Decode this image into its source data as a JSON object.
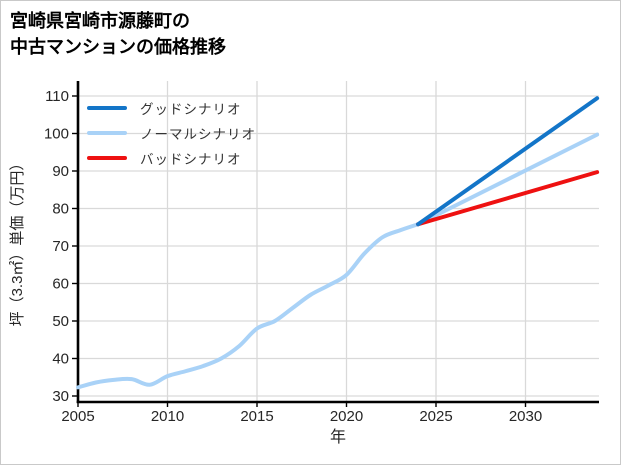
{
  "header": {
    "title_lines": [
      "宮崎県宮崎市源藤町の",
      "中古マンションの価格推移"
    ]
  },
  "chart_data": {
    "type": "line",
    "title": "宮崎県宮崎市源藤町の中古マンションの価格推移",
    "xlabel": "年",
    "ylabel": "坪（3.3㎡）単価（万円）",
    "x_ticks": [
      2005,
      2010,
      2015,
      2020,
      2025,
      2030
    ],
    "y_ticks": [
      30,
      40,
      50,
      60,
      70,
      80,
      90,
      100,
      110
    ],
    "xlim": [
      2005,
      2034.3
    ],
    "ylim": [
      28.5,
      114
    ],
    "grid": true,
    "legend_position": "top-left-inside",
    "colors": {
      "good": "#1375c8",
      "normal": "#a9d2f7",
      "bad": "#ee1111",
      "grid": "#d9d9d9",
      "axis": "#000000",
      "text": "#262626"
    },
    "history": {
      "label": "ノーマルシナリオ",
      "color_key": "normal",
      "x": [
        2005,
        2006,
        2007,
        2008,
        2009,
        2010,
        2011,
        2012,
        2013,
        2014,
        2015,
        2016,
        2017,
        2018,
        2019,
        2020,
        2021,
        2022,
        2023,
        2024
      ],
      "values": [
        32.3,
        33.6,
        34.3,
        34.5,
        33.0,
        35.3,
        36.6,
        38.0,
        40.0,
        43.3,
        48.0,
        50.0,
        53.5,
        57.0,
        59.5,
        62.3,
        68.0,
        72.3,
        74.2,
        75.8
      ]
    },
    "forecast": {
      "x": [
        2024,
        2034
      ],
      "series": [
        {
          "name": "グッドシナリオ",
          "color_key": "good",
          "values": [
            75.8,
            109.4
          ]
        },
        {
          "name": "ノーマルシナリオ",
          "color_key": "normal",
          "values": [
            75.8,
            99.7
          ]
        },
        {
          "name": "バッドシナリオ",
          "color_key": "bad",
          "values": [
            75.8,
            89.7
          ]
        }
      ]
    }
  }
}
